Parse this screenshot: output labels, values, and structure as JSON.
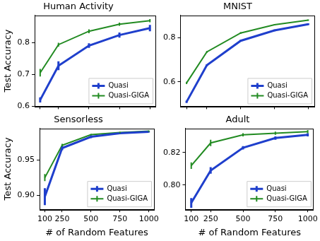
{
  "chart_data": [
    {
      "type": "line",
      "title": "Human Activity",
      "ylabel": "Test Accuracy",
      "x": [
        100,
        250,
        500,
        750,
        1000
      ],
      "xlim": [
        55,
        1045
      ],
      "xticks": [
        100,
        250,
        500,
        750,
        1000
      ],
      "ylim": [
        0.6,
        0.885
      ],
      "yticks": [
        0.6,
        0.7,
        0.8
      ],
      "grid": false,
      "legend": "lower right",
      "tick_labels": "y",
      "series": [
        {
          "name": "Quasi",
          "color": "#1f3fcc",
          "values": [
            0.62,
            0.727,
            0.79,
            0.823,
            0.845
          ],
          "errors": [
            0.008,
            0.014,
            0.007,
            0.008,
            0.01
          ]
        },
        {
          "name": "Quasi-GIGA",
          "color": "#228b22",
          "values": [
            0.705,
            0.793,
            0.835,
            0.857,
            0.868
          ],
          "errors": [
            0.012,
            0.006,
            0.006,
            0.005,
            0.005
          ]
        }
      ]
    },
    {
      "type": "line",
      "title": "MNIST",
      "x": [
        100,
        250,
        500,
        750,
        1000
      ],
      "xlim": [
        55,
        1045
      ],
      "xticks": [
        100,
        250,
        500,
        750,
        1000
      ],
      "ylim": [
        0.49,
        0.9
      ],
      "yticks": [
        0.6,
        0.8
      ],
      "grid": false,
      "legend": "lower right",
      "tick_labels": "y",
      "series": [
        {
          "name": "Quasi",
          "color": "#1f3fcc",
          "values": [
            0.51,
            0.675,
            0.785,
            0.832,
            0.86
          ],
          "errors": [
            0.005,
            0.004,
            0.004,
            0.004,
            0.004
          ]
        },
        {
          "name": "Quasi-GIGA",
          "color": "#228b22",
          "values": [
            0.595,
            0.735,
            0.82,
            0.857,
            0.878
          ],
          "errors": [
            0.005,
            0.004,
            0.004,
            0.003,
            0.003
          ]
        }
      ]
    },
    {
      "type": "line",
      "title": "Sensorless",
      "ylabel": "Test Accuracy",
      "xlabel": "# of Random Features",
      "x": [
        100,
        250,
        500,
        750,
        1000
      ],
      "xlim": [
        55,
        1045
      ],
      "xticks": [
        100,
        250,
        500,
        750,
        1000
      ],
      "ylim": [
        0.88,
        0.995
      ],
      "yticks": [
        {
          "value": 0.9,
          "label": "0.90"
        },
        {
          "value": 0.95,
          "label": "0.95"
        }
      ],
      "grid": false,
      "legend": "lower right",
      "series": [
        {
          "name": "Quasi",
          "color": "#1f3fcc",
          "values": [
            0.898,
            0.967,
            0.983,
            0.988,
            0.99
          ],
          "errors": [
            0.012,
            0.003,
            0.002,
            0.001,
            0.001
          ]
        },
        {
          "name": "Quasi-GIGA",
          "color": "#228b22",
          "values": [
            0.925,
            0.971,
            0.986,
            0.989,
            0.991
          ],
          "errors": [
            0.005,
            0.002,
            0.001,
            0.001,
            0.001
          ]
        }
      ]
    },
    {
      "type": "line",
      "title": "Adult",
      "xlabel": "# of Random Features",
      "x": [
        100,
        250,
        500,
        750,
        1000
      ],
      "xlim": [
        55,
        1045
      ],
      "xticks": [
        100,
        250,
        500,
        750,
        1000
      ],
      "ylim": [
        0.785,
        0.835
      ],
      "yticks": [
        {
          "value": 0.8,
          "label": "0.80"
        },
        {
          "value": 0.82,
          "label": "0.82"
        }
      ],
      "grid": false,
      "legend": "lower right",
      "series": [
        {
          "name": "Quasi",
          "color": "#1f3fcc",
          "values": [
            0.789,
            0.809,
            0.823,
            0.829,
            0.831
          ],
          "errors": [
            0.003,
            0.002,
            0.001,
            0.001,
            0.001
          ]
        },
        {
          "name": "Quasi-GIGA",
          "color": "#228b22",
          "values": [
            0.812,
            0.826,
            0.831,
            0.832,
            0.833
          ],
          "errors": [
            0.002,
            0.002,
            0.001,
            0.001,
            0.001
          ]
        }
      ]
    }
  ]
}
